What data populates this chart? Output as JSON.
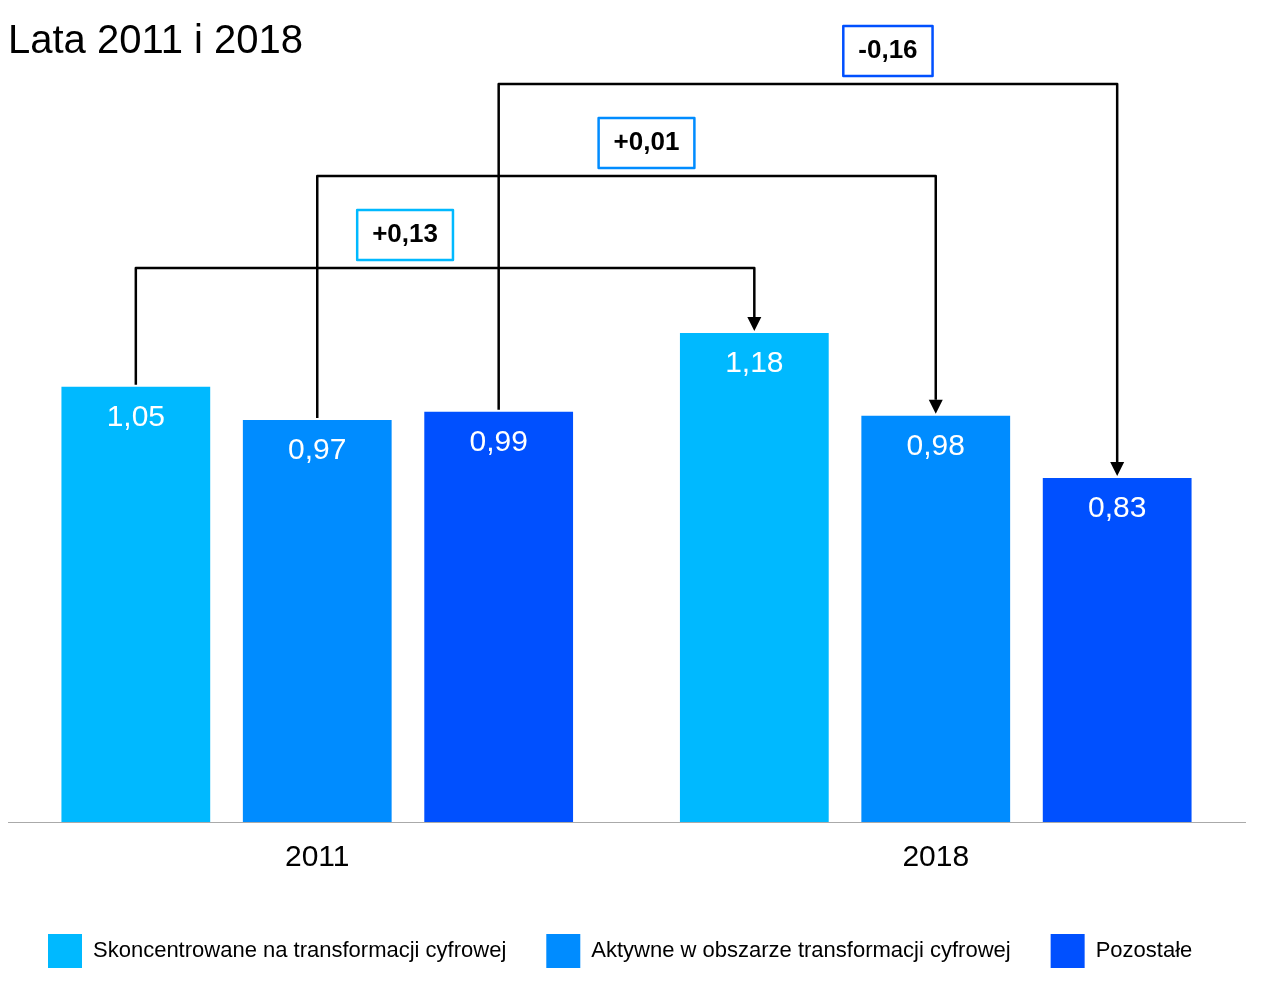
{
  "chart_data": {
    "type": "bar",
    "title": "Lata 2011 i 2018",
    "categories": [
      "2011",
      "2018"
    ],
    "series": [
      {
        "name": "Skoncentrowane na transformacji cyfrowej",
        "color": "#00b9ff",
        "values": [
          1.05,
          1.18
        ],
        "value_labels": [
          "1,05",
          "1,18"
        ]
      },
      {
        "name": "Aktywne w obszarze transformacji cyfrowej",
        "color": "#008cff",
        "values": [
          0.97,
          0.98
        ],
        "value_labels": [
          "0,97",
          "0,98"
        ]
      },
      {
        "name": "Pozostałe",
        "color": "#0050ff",
        "values": [
          0.99,
          0.83
        ],
        "value_labels": [
          "0,99",
          "0,83"
        ]
      }
    ],
    "annotations": [
      "+0,13",
      "+0,01",
      "-0,16"
    ],
    "legend": "bottom",
    "grid": false
  }
}
